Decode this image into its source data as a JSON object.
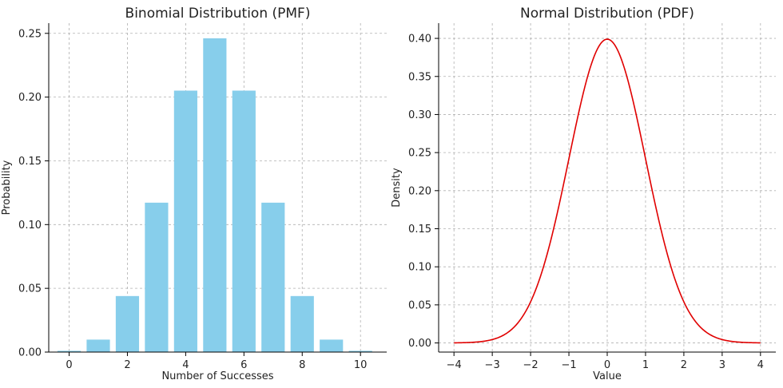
{
  "chart_data": [
    {
      "type": "bar",
      "title": "Binomial Distribution (PMF)",
      "xlabel": "Number of Successes",
      "ylabel": "Probability",
      "categories": [
        0,
        1,
        2,
        3,
        4,
        5,
        6,
        7,
        8,
        9,
        10
      ],
      "values": [
        0.00098,
        0.00977,
        0.04395,
        0.11719,
        0.20508,
        0.24609,
        0.20508,
        0.11719,
        0.04395,
        0.00977,
        0.00098
      ],
      "xlim": [
        -0.7,
        10.9
      ],
      "ylim": [
        0,
        0.258
      ],
      "xticks": [
        0,
        2,
        4,
        6,
        8,
        10
      ],
      "xtick_labels": [
        "0",
        "2",
        "4",
        "6",
        "8",
        "10"
      ],
      "yticks": [
        0,
        0.05,
        0.1,
        0.15,
        0.2,
        0.25
      ],
      "ytick_labels": [
        "0.00",
        "0.05",
        "0.10",
        "0.15",
        "0.20",
        "0.25"
      ],
      "grid": true,
      "color": "#87ceeb"
    },
    {
      "type": "line",
      "title": "Normal Distribution (PDF)",
      "xlabel": "Value",
      "ylabel": "Density",
      "function": "standard normal pdf",
      "x_range": [
        -4,
        4
      ],
      "xlim": [
        -4.4,
        4.4
      ],
      "ylim": [
        -0.012,
        0.42
      ],
      "xticks": [
        -4,
        -3,
        -2,
        -1,
        0,
        1,
        2,
        3,
        4
      ],
      "xtick_labels": [
        "−4",
        "−3",
        "−2",
        "−1",
        "0",
        "1",
        "2",
        "3",
        "4"
      ],
      "yticks": [
        0,
        0.05,
        0.1,
        0.15,
        0.2,
        0.25,
        0.3,
        0.35,
        0.4
      ],
      "ytick_labels": [
        "0.00",
        "0.05",
        "0.10",
        "0.15",
        "0.20",
        "0.25",
        "0.30",
        "0.35",
        "0.40"
      ],
      "grid": true,
      "color": "#e00000"
    }
  ]
}
